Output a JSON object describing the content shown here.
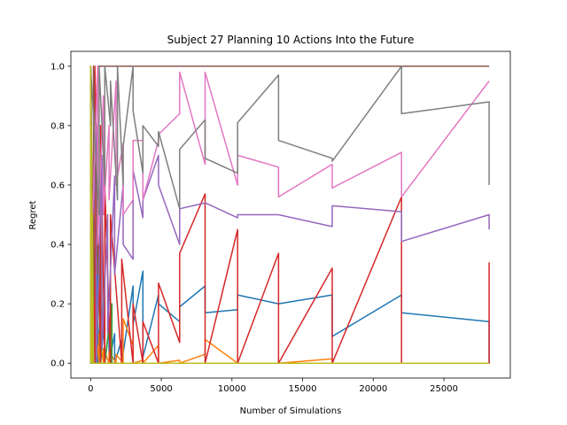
{
  "chart_data": {
    "type": "line",
    "title": "Subject 27 Planning 10 Actions Into the Future",
    "xlabel": "Number of Simulations",
    "ylabel": "Regret",
    "xlim": [
      -1400,
      29700
    ],
    "ylim": [
      -0.05,
      1.05
    ],
    "xticks": [
      0,
      5000,
      10000,
      15000,
      20000,
      25000
    ],
    "xtick_labels": [
      "0",
      "5000",
      "10000",
      "15000",
      "20000",
      "25000"
    ],
    "yticks": [
      0.0,
      0.2,
      0.4,
      0.6,
      0.8,
      1.0
    ],
    "ytick_labels": [
      "0.0",
      "0.2",
      "0.4",
      "0.6",
      "0.8",
      "1.0"
    ],
    "grid": false,
    "legend": "none",
    "series": [
      {
        "color": "#1f77b4",
        "x": [
          1,
          1,
          100,
          100,
          300,
          300,
          500,
          500,
          700,
          700,
          1000,
          1000,
          1300,
          1300,
          1700,
          1700,
          2200,
          2200,
          3000,
          3000,
          3700,
          3700,
          4800,
          4800,
          6300,
          6300,
          8100,
          8100,
          10400,
          10400,
          13300,
          13300,
          17100,
          17100,
          22000,
          22000,
          28200,
          28200
        ],
        "y": [
          1.0,
          0.0,
          0.6,
          0.0,
          0.4,
          0.0,
          0.3,
          0.0,
          0.2,
          0.0,
          0.15,
          0.0,
          0.12,
          0.0,
          0.1,
          0.0,
          0.08,
          0.0,
          0.26,
          0.13,
          0.31,
          0.02,
          0.23,
          0.2,
          0.14,
          0.19,
          0.26,
          0.17,
          0.18,
          0.23,
          0.2,
          0.2,
          0.23,
          0.09,
          0.23,
          0.17,
          0.14,
          0.0
        ]
      },
      {
        "color": "#ff7f0e",
        "x": [
          1,
          1,
          200,
          200,
          600,
          600,
          900,
          900,
          1300,
          1300,
          1800,
          1800,
          2300,
          2300,
          3000,
          3000,
          3700,
          3700,
          4800,
          4800,
          6300,
          6300,
          8100,
          8100,
          10400,
          10400,
          13300,
          13300,
          17100,
          17100,
          22000,
          22000,
          28200
        ],
        "y": [
          0.0,
          0.25,
          0.0,
          0.2,
          0.0,
          0.1,
          0.0,
          0.05,
          0.0,
          0.04,
          0.0,
          0.03,
          0.0,
          0.15,
          0.06,
          0.0,
          0.01,
          0.0,
          0.06,
          0.0,
          0.01,
          0.0,
          0.03,
          0.08,
          0.0,
          0.0,
          0.0,
          0.0,
          0.015,
          0.0,
          0.0,
          0.0,
          0.0
        ]
      },
      {
        "color": "#2ca02c",
        "x": [
          1,
          1,
          150,
          150,
          400,
          400,
          700,
          700,
          1000,
          1000,
          1500,
          1500,
          28200
        ],
        "y": [
          0.9,
          0.0,
          0.6,
          0.0,
          0.5,
          0.0,
          0.4,
          0.0,
          0.3,
          0.0,
          0.2,
          0.0,
          0.0
        ]
      },
      {
        "color": "#d62728",
        "x": [
          1,
          1,
          300,
          300,
          700,
          700,
          1000,
          1000,
          1400,
          1400,
          2200,
          2200,
          3000,
          3000,
          3700,
          3700,
          4800,
          4800,
          6300,
          6300,
          8100,
          8100,
          10400,
          10400,
          13300,
          13300,
          17100,
          17100,
          22000,
          22000,
          28200,
          28200
        ],
        "y": [
          0.0,
          0.9,
          0.0,
          1.0,
          0.0,
          0.8,
          0.0,
          0.6,
          0.0,
          0.5,
          0.0,
          0.35,
          0.0,
          0.2,
          0.0,
          0.14,
          0.0,
          0.27,
          0.07,
          0.37,
          0.57,
          0.0,
          0.45,
          0.0,
          0.37,
          0.0,
          0.32,
          0.0,
          0.56,
          0.0,
          0.0,
          0.34
        ]
      },
      {
        "color": "#9467bd",
        "x": [
          1,
          1,
          400,
          400,
          800,
          800,
          1200,
          1200,
          1700,
          1700,
          2300,
          2300,
          3000,
          3000,
          3700,
          3700,
          4800,
          4800,
          6300,
          6300,
          8100,
          8100,
          10400,
          10400,
          13300,
          13300,
          17100,
          17100,
          22000,
          22000,
          28200,
          28200
        ],
        "y": [
          1.0,
          0.1,
          0.8,
          0.0,
          0.7,
          0.05,
          0.5,
          0.1,
          0.63,
          0.3,
          0.6,
          0.4,
          0.35,
          0.65,
          0.49,
          0.55,
          0.7,
          0.6,
          0.4,
          0.52,
          0.54,
          0.54,
          0.49,
          0.5,
          0.5,
          0.5,
          0.46,
          0.53,
          0.51,
          0.41,
          0.5,
          0.45
        ]
      },
      {
        "color": "#8c564b",
        "x": [
          1,
          1,
          200,
          200,
          500,
          500,
          28200
        ],
        "y": [
          0.0,
          1.0,
          0.2,
          1.0,
          0.3,
          1.0,
          1.0
        ]
      },
      {
        "color": "#e377c2",
        "x": [
          1,
          1,
          500,
          500,
          900,
          900,
          1300,
          1300,
          1800,
          1800,
          2300,
          2300,
          3000,
          3000,
          3700,
          3700,
          4800,
          4800,
          6300,
          6300,
          8100,
          8100,
          10400,
          10400,
          13300,
          13300,
          17100,
          17100,
          22000,
          22000,
          28200
        ],
        "y": [
          1.0,
          0.3,
          1.0,
          0.4,
          0.9,
          0.5,
          0.8,
          0.55,
          0.95,
          0.6,
          0.74,
          0.5,
          0.55,
          0.75,
          0.75,
          0.55,
          0.75,
          0.77,
          0.84,
          0.98,
          0.67,
          0.98,
          0.6,
          0.7,
          0.66,
          0.56,
          0.67,
          0.59,
          0.71,
          0.56,
          0.95
        ]
      },
      {
        "color": "#7f7f7f",
        "x": [
          1,
          1,
          600,
          600,
          1000,
          1000,
          1400,
          1400,
          1900,
          1900,
          2300,
          2300,
          3000,
          3000,
          3700,
          3700,
          4800,
          4800,
          6300,
          6300,
          8100,
          8100,
          10400,
          10400,
          13300,
          13300,
          17100,
          17100,
          22000,
          22000,
          28200,
          28200
        ],
        "y": [
          0.0,
          1.0,
          0.5,
          1.0,
          0.6,
          1.0,
          0.8,
          0.95,
          0.55,
          1.0,
          0.6,
          0.73,
          1.0,
          0.85,
          0.64,
          0.8,
          0.73,
          0.78,
          0.52,
          0.72,
          0.82,
          0.69,
          0.64,
          0.81,
          0.97,
          0.75,
          0.69,
          0.68,
          1.0,
          0.84,
          0.88,
          0.6
        ]
      },
      {
        "color": "#bcbd22",
        "x": [
          1,
          1,
          50,
          50,
          120,
          120,
          200,
          200,
          28200
        ],
        "y": [
          0.0,
          1.0,
          0.0,
          0.8,
          0.0,
          0.5,
          0.0,
          0.0,
          0.0
        ]
      }
    ]
  }
}
